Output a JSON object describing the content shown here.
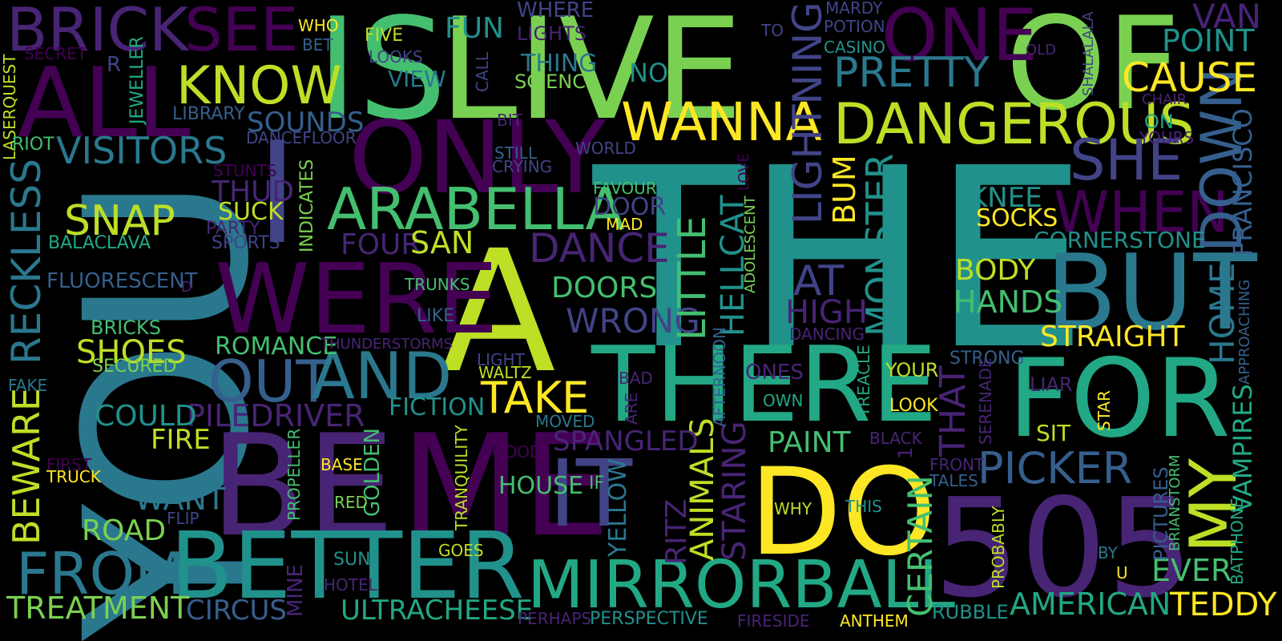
{
  "background": "#000000",
  "palette": {
    "dark_purple": "#440154",
    "purple": "#482475",
    "indigo": "#414487",
    "blue": "#355f8d",
    "steel": "#2a788e",
    "teal": "#21918c",
    "green_teal": "#22a884",
    "green": "#44bf70",
    "lime": "#7ad151",
    "yellow_green": "#bddf26",
    "yellow": "#fde725"
  },
  "words": [
    {
      "text": "THE",
      "color": "teal"
    },
    {
      "text": "A",
      "color": "yellow_green"
    },
    {
      "text": "YOU",
      "color": "steel"
    },
    {
      "text": "IS",
      "color": "green"
    },
    {
      "text": "LIVE",
      "color": "lime"
    },
    {
      "text": "OF",
      "color": "lime"
    },
    {
      "text": "ONLY",
      "color": "dark_purple"
    },
    {
      "text": "BE",
      "color": "purple"
    },
    {
      "text": "ME",
      "color": "dark_purple"
    },
    {
      "text": "505",
      "color": "purple"
    },
    {
      "text": "DO",
      "color": "yellow"
    },
    {
      "text": "FOR",
      "color": "green_teal"
    },
    {
      "text": "BUT",
      "color": "steel"
    },
    {
      "text": "THERE",
      "color": "green_teal"
    },
    {
      "text": "WERE",
      "color": "dark_purple"
    },
    {
      "text": "I",
      "color": "indigo"
    },
    {
      "text": "ALL",
      "color": "dark_purple"
    },
    {
      "text": "BETTER",
      "color": "teal"
    },
    {
      "text": "IT",
      "color": "indigo"
    },
    {
      "text": "MIRRORBALL",
      "color": "green_teal"
    },
    {
      "text": "ONE",
      "color": "dark_purple"
    },
    {
      "text": "BRICK",
      "color": "purple"
    },
    {
      "text": "SEE",
      "color": "dark_purple"
    },
    {
      "text": "ARABELLA",
      "color": "green"
    },
    {
      "text": "DANGEROUS",
      "color": "yellow_green"
    },
    {
      "text": "OUT",
      "color": "blue"
    },
    {
      "text": "AND",
      "color": "steel"
    },
    {
      "text": "KNOW",
      "color": "yellow_green"
    },
    {
      "text": "WANNA",
      "color": "yellow"
    },
    {
      "text": "FROM",
      "color": "steel"
    },
    {
      "text": "PRETTY",
      "color": "steel"
    },
    {
      "text": "SHE",
      "color": "indigo"
    },
    {
      "text": "WHEN",
      "color": "dark_purple"
    },
    {
      "text": "DOWN",
      "color": "blue"
    },
    {
      "text": "VISITORS",
      "color": "steel"
    },
    {
      "text": "RECKLESS",
      "color": "steel"
    },
    {
      "text": "LIGHTNING",
      "color": "indigo"
    },
    {
      "text": "SNAP",
      "color": "yellow_green"
    },
    {
      "text": "MY",
      "color": "yellow_green"
    },
    {
      "text": "TAKE",
      "color": "yellow"
    },
    {
      "text": "DANCE",
      "color": "purple"
    },
    {
      "text": "WRONG",
      "color": "indigo"
    },
    {
      "text": "MONSTER",
      "color": "teal"
    },
    {
      "text": "LITTLE",
      "color": "green"
    },
    {
      "text": "PICKER",
      "color": "blue"
    },
    {
      "text": "AT",
      "color": "indigo"
    },
    {
      "text": "HIGH",
      "color": "purple"
    },
    {
      "text": "HOME",
      "color": "steel"
    },
    {
      "text": "CAUSE",
      "color": "yellow"
    },
    {
      "text": "POINT",
      "color": "teal"
    },
    {
      "text": "VAN",
      "color": "purple"
    },
    {
      "text": "FRANCISCO",
      "color": "blue"
    },
    {
      "text": "SHOES",
      "color": "yellow_green"
    },
    {
      "text": "BEWARE",
      "color": "yellow_green"
    },
    {
      "text": "TREATMENT",
      "color": "lime"
    },
    {
      "text": "CIRCUS",
      "color": "blue"
    },
    {
      "text": "ULTRACHEESE",
      "color": "green_teal"
    },
    {
      "text": "AMERICAN",
      "color": "green_teal"
    },
    {
      "text": "TEDDY",
      "color": "yellow"
    },
    {
      "text": "EVER",
      "color": "green"
    },
    {
      "text": "VAMPIRES",
      "color": "green_teal"
    },
    {
      "text": "BODY",
      "color": "yellow_green"
    },
    {
      "text": "HANDS",
      "color": "green"
    },
    {
      "text": "STRAIGHT",
      "color": "yellow"
    },
    {
      "text": "CORNERSTONE",
      "color": "teal"
    },
    {
      "text": "KNEE",
      "color": "teal"
    },
    {
      "text": "SOCKS",
      "color": "yellow"
    },
    {
      "text": "HELLCAT",
      "color": "teal"
    },
    {
      "text": "BUM",
      "color": "yellow"
    },
    {
      "text": "ANIMALS",
      "color": "yellow_green"
    },
    {
      "text": "STARING",
      "color": "purple"
    },
    {
      "text": "RITZ",
      "color": "purple"
    },
    {
      "text": "YELLOW",
      "color": "steel"
    },
    {
      "text": "CERTAIN",
      "color": "green"
    },
    {
      "text": "THAT",
      "color": "purple"
    },
    {
      "text": "PAINT",
      "color": "green"
    },
    {
      "text": "SPANGLED",
      "color": "purple"
    },
    {
      "text": "HOUSE",
      "color": "green"
    },
    {
      "text": "DOORS",
      "color": "green"
    },
    {
      "text": "FOUR",
      "color": "purple"
    },
    {
      "text": "SAN",
      "color": "yellow_green"
    },
    {
      "text": "DOOR",
      "color": "indigo"
    },
    {
      "text": "FAVOUR",
      "color": "green"
    },
    {
      "text": "PILEDRIVER",
      "color": "purple"
    },
    {
      "text": "FICTION",
      "color": "teal"
    },
    {
      "text": "COULD",
      "color": "teal"
    },
    {
      "text": "FIRE",
      "color": "yellow_green"
    },
    {
      "text": "ROMANCE",
      "color": "green"
    },
    {
      "text": "WANT",
      "color": "steel"
    },
    {
      "text": "ROAD",
      "color": "lime"
    },
    {
      "text": "FLUORESCENT",
      "color": "blue"
    },
    {
      "text": "THUD",
      "color": "purple"
    },
    {
      "text": "SUCK",
      "color": "yellow_green"
    },
    {
      "text": "PARTY",
      "color": "purple"
    },
    {
      "text": "SPORTS",
      "color": "indigo"
    },
    {
      "text": "BALACLAVA",
      "color": "green_teal"
    },
    {
      "text": "BRICKS",
      "color": "green"
    },
    {
      "text": "SECURED",
      "color": "lime"
    },
    {
      "text": "SOUNDS",
      "color": "blue"
    },
    {
      "text": "LIBRARY",
      "color": "blue"
    },
    {
      "text": "DANCEFLOOR",
      "color": "indigo"
    },
    {
      "text": "STUNTS",
      "color": "dark_purple"
    },
    {
      "text": "INDICATES",
      "color": "lime"
    },
    {
      "text": "JEWELLER",
      "color": "green_teal"
    },
    {
      "text": "LASERQUEST",
      "color": "yellow_green"
    },
    {
      "text": "RIOT",
      "color": "green"
    },
    {
      "text": "SECRET",
      "color": "dark_purple"
    },
    {
      "text": "R",
      "color": "indigo"
    },
    {
      "text": "WHO",
      "color": "yellow"
    },
    {
      "text": "BET",
      "color": "blue"
    },
    {
      "text": "FIVE",
      "color": "yellow_green"
    },
    {
      "text": "FUN",
      "color": "teal"
    },
    {
      "text": "LOOKS",
      "color": "indigo"
    },
    {
      "text": "VIEW",
      "color": "steel"
    },
    {
      "text": "CALL",
      "color": "indigo"
    },
    {
      "text": "WHERE",
      "color": "indigo"
    },
    {
      "text": "LIGHTS",
      "color": "purple"
    },
    {
      "text": "THING",
      "color": "steel"
    },
    {
      "text": "SCIENCE",
      "color": "lime"
    },
    {
      "text": "NO",
      "color": "teal"
    },
    {
      "text": "BIT",
      "color": "purple"
    },
    {
      "text": "STILL",
      "color": "blue"
    },
    {
      "text": "CRYING",
      "color": "indigo"
    },
    {
      "text": "WORLD",
      "color": "indigo"
    },
    {
      "text": "MARDY",
      "color": "indigo"
    },
    {
      "text": "POTION",
      "color": "indigo"
    },
    {
      "text": "CASINO",
      "color": "teal"
    },
    {
      "text": "TO",
      "color": "indigo"
    },
    {
      "text": "SHALALALA",
      "color": "indigo"
    },
    {
      "text": "OLD",
      "color": "purple"
    },
    {
      "text": "CHAIR",
      "color": "purple"
    },
    {
      "text": "ON",
      "color": "green_teal"
    },
    {
      "text": "YOURS",
      "color": "purple"
    },
    {
      "text": "LOVE",
      "color": "dark_purple"
    },
    {
      "text": "ADOLESCENT",
      "color": "lime"
    },
    {
      "text": "MAD",
      "color": "yellow"
    },
    {
      "text": "TRUNKS",
      "color": "green"
    },
    {
      "text": "LIKE",
      "color": "blue"
    },
    {
      "text": "THUNDERSTORMS",
      "color": "purple"
    },
    {
      "text": "LIGHT",
      "color": "indigo"
    },
    {
      "text": "WALTZ",
      "color": "yellow_green"
    },
    {
      "text": "MOVED",
      "color": "steel"
    },
    {
      "text": "GOOD",
      "color": "dark_purple"
    },
    {
      "text": "TRANQUILITY",
      "color": "yellow_green"
    },
    {
      "text": "GOLDEN",
      "color": "green"
    },
    {
      "text": "IF",
      "color": "green"
    },
    {
      "text": "BASE",
      "color": "yellow"
    },
    {
      "text": "RED",
      "color": "lime"
    },
    {
      "text": "PROPELLER",
      "color": "green"
    },
    {
      "text": "GOES",
      "color": "yellow_green"
    },
    {
      "text": "SUN",
      "color": "teal"
    },
    {
      "text": "HOTEL",
      "color": "purple"
    },
    {
      "text": "MINE",
      "color": "purple"
    },
    {
      "text": "PERHAPS",
      "color": "purple"
    },
    {
      "text": "PERSPECTIVE",
      "color": "teal"
    },
    {
      "text": "FIRESIDE",
      "color": "purple"
    },
    {
      "text": "ANTHEM",
      "color": "yellow"
    },
    {
      "text": "RUBBLE",
      "color": "teal"
    },
    {
      "text": "BAD",
      "color": "purple"
    },
    {
      "text": "ARE",
      "color": "purple"
    },
    {
      "text": "AFTERNOON",
      "color": "blue"
    },
    {
      "text": "ONES",
      "color": "purple"
    },
    {
      "text": "OWN",
      "color": "green_teal"
    },
    {
      "text": "TREACLE",
      "color": "green_teal"
    },
    {
      "text": "DANCING",
      "color": "purple"
    },
    {
      "text": "WHY",
      "color": "yellow_green"
    },
    {
      "text": "THIS",
      "color": "teal"
    },
    {
      "text": "BLACK",
      "color": "purple"
    },
    {
      "text": "1",
      "color": "purple"
    },
    {
      "text": "YOUR",
      "color": "yellow_green"
    },
    {
      "text": "LOOK",
      "color": "yellow"
    },
    {
      "text": "STRONG",
      "color": "blue"
    },
    {
      "text": "SERENADE",
      "color": "purple"
    },
    {
      "text": "LIAR",
      "color": "purple"
    },
    {
      "text": "SIT",
      "color": "yellow_green"
    },
    {
      "text": "STAR",
      "color": "yellow"
    },
    {
      "text": "FRONT",
      "color": "purple"
    },
    {
      "text": "TALES",
      "color": "blue"
    },
    {
      "text": "PROBABLY",
      "color": "yellow_green"
    },
    {
      "text": "PICTURES",
      "color": "blue"
    },
    {
      "text": "BRIANSTORM",
      "color": "green"
    },
    {
      "text": "BATPHONE",
      "color": "green_teal"
    },
    {
      "text": "APPROACHING",
      "color": "blue"
    },
    {
      "text": "BY",
      "color": "steel"
    },
    {
      "text": "U",
      "color": "yellow"
    },
    {
      "text": "FAKE",
      "color": "steel"
    },
    {
      "text": "FIRST",
      "color": "dark_purple"
    },
    {
      "text": "TRUCK",
      "color": "yellow"
    },
    {
      "text": "FLIP",
      "color": "indigo"
    },
    {
      "text": "D",
      "color": "purple"
    }
  ]
}
